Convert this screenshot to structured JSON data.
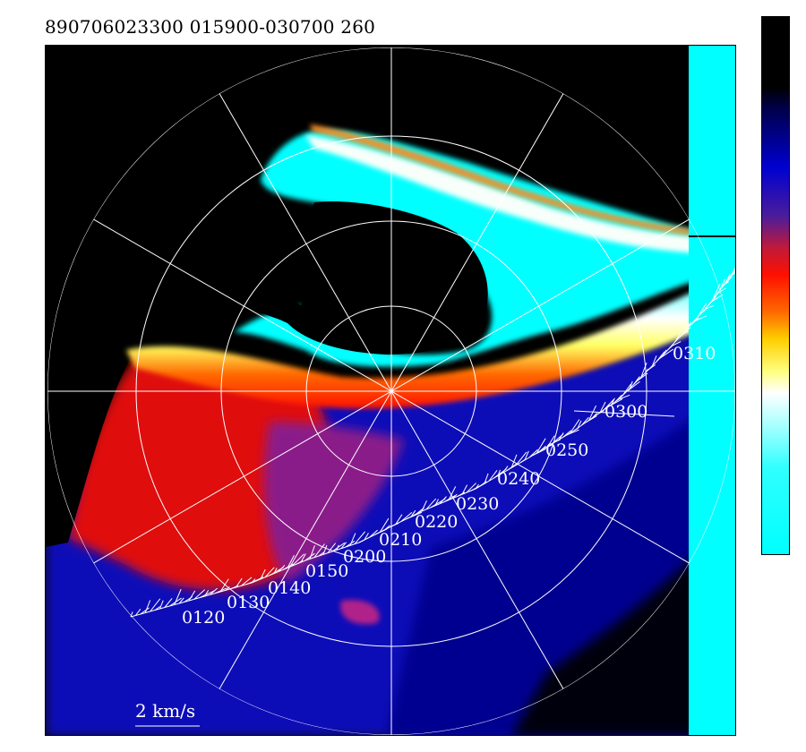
{
  "header": {
    "title": "890706023300 015900-030700 260"
  },
  "colors": {
    "background": "#000000",
    "colorbar": [
      "#000000",
      "#00004a",
      "#0000d0",
      "#c01a3a",
      "#ff1000",
      "#ff6a00",
      "#ffcf00",
      "#ffffff",
      "#30ffff",
      "#00ffff"
    ]
  },
  "track": {
    "time_labels": [
      "0120",
      "0130",
      "0140",
      "0150",
      "0200",
      "0210",
      "0220",
      "0230",
      "0240",
      "0250",
      "0300",
      "0310"
    ]
  },
  "scale": {
    "label": "2 km/s"
  }
}
